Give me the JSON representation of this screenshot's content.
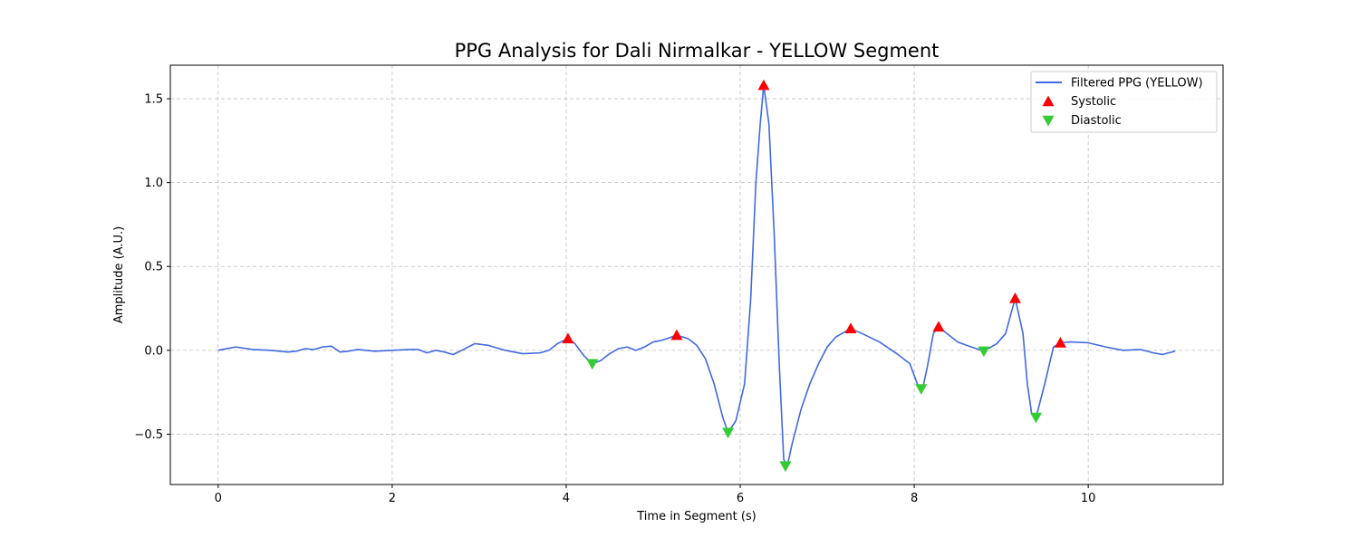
{
  "chart_data": {
    "type": "line",
    "title": "PPG Analysis for Dali Nirmalkar - YELLOW Segment",
    "xlabel": "Time in Segment (s)",
    "ylabel": "Amplitude (A.U.)",
    "xlim": [
      -0.55,
      11.55
    ],
    "ylim": [
      -0.8,
      1.7
    ],
    "xticks": [
      0,
      2,
      4,
      6,
      8,
      10
    ],
    "xtick_labels": [
      "0",
      "2",
      "4",
      "6",
      "8",
      "10"
    ],
    "yticks": [
      -0.5,
      0.0,
      0.5,
      1.0,
      1.5
    ],
    "ytick_labels": [
      "−0.5",
      "0.0",
      "0.5",
      "1.0",
      "1.5"
    ],
    "grid": true,
    "legend_position": "top-right",
    "colors": {
      "line": "#4169e1",
      "systolic": "#ff0000",
      "diastolic": "#32cd32"
    },
    "series": [
      {
        "name": "Filtered PPG (YELLOW)",
        "kind": "line",
        "points": [
          [
            0.0,
            0.0
          ],
          [
            0.2,
            0.02
          ],
          [
            0.4,
            0.005
          ],
          [
            0.6,
            0.0
          ],
          [
            0.8,
            -0.01
          ],
          [
            0.9,
            -0.005
          ],
          [
            1.0,
            0.01
          ],
          [
            1.1,
            0.005
          ],
          [
            1.2,
            0.02
          ],
          [
            1.3,
            0.025
          ],
          [
            1.4,
            -0.01
          ],
          [
            1.5,
            -0.005
          ],
          [
            1.6,
            0.005
          ],
          [
            1.8,
            -0.005
          ],
          [
            2.0,
            0.0
          ],
          [
            2.2,
            0.005
          ],
          [
            2.3,
            0.005
          ],
          [
            2.4,
            -0.015
          ],
          [
            2.5,
            0.0
          ],
          [
            2.6,
            -0.01
          ],
          [
            2.7,
            -0.025
          ],
          [
            2.8,
            0.0
          ],
          [
            2.95,
            0.04
          ],
          [
            3.1,
            0.03
          ],
          [
            3.3,
            0.0
          ],
          [
            3.5,
            -0.02
          ],
          [
            3.7,
            -0.015
          ],
          [
            3.8,
            0.0
          ],
          [
            3.9,
            0.04
          ],
          [
            4.02,
            0.07
          ],
          [
            4.1,
            0.04
          ],
          [
            4.2,
            -0.03
          ],
          [
            4.3,
            -0.08
          ],
          [
            4.4,
            -0.06
          ],
          [
            4.5,
            -0.02
          ],
          [
            4.6,
            0.01
          ],
          [
            4.7,
            0.02
          ],
          [
            4.8,
            0.0
          ],
          [
            4.9,
            0.02
          ],
          [
            5.0,
            0.05
          ],
          [
            5.1,
            0.06
          ],
          [
            5.27,
            0.09
          ],
          [
            5.4,
            0.07
          ],
          [
            5.5,
            0.03
          ],
          [
            5.6,
            -0.05
          ],
          [
            5.7,
            -0.2
          ],
          [
            5.8,
            -0.4
          ],
          [
            5.86,
            -0.49
          ],
          [
            5.95,
            -0.42
          ],
          [
            6.05,
            -0.2
          ],
          [
            6.12,
            0.3
          ],
          [
            6.18,
            1.0
          ],
          [
            6.23,
            1.35
          ],
          [
            6.27,
            1.58
          ],
          [
            6.33,
            1.35
          ],
          [
            6.39,
            0.7
          ],
          [
            6.45,
            -0.1
          ],
          [
            6.5,
            -0.65
          ],
          [
            6.54,
            -0.69
          ],
          [
            6.6,
            -0.55
          ],
          [
            6.7,
            -0.35
          ],
          [
            6.8,
            -0.2
          ],
          [
            6.9,
            -0.08
          ],
          [
            7.0,
            0.02
          ],
          [
            7.1,
            0.08
          ],
          [
            7.27,
            0.13
          ],
          [
            7.4,
            0.1
          ],
          [
            7.6,
            0.05
          ],
          [
            7.8,
            -0.02
          ],
          [
            7.95,
            -0.08
          ],
          [
            8.05,
            -0.22
          ],
          [
            8.1,
            -0.22
          ],
          [
            8.15,
            -0.1
          ],
          [
            8.22,
            0.1
          ],
          [
            8.28,
            0.14
          ],
          [
            8.4,
            0.09
          ],
          [
            8.5,
            0.05
          ],
          [
            8.6,
            0.03
          ],
          [
            8.8,
            -0.005
          ],
          [
            8.95,
            0.04
          ],
          [
            9.05,
            0.1
          ],
          [
            9.16,
            0.31
          ],
          [
            9.25,
            0.1
          ],
          [
            9.3,
            -0.2
          ],
          [
            9.35,
            -0.38
          ],
          [
            9.4,
            -0.4
          ],
          [
            9.5,
            -0.2
          ],
          [
            9.6,
            0.02
          ],
          [
            9.68,
            0.045
          ],
          [
            9.8,
            0.05
          ],
          [
            10.0,
            0.045
          ],
          [
            10.2,
            0.02
          ],
          [
            10.4,
            0.0
          ],
          [
            10.6,
            0.005
          ],
          [
            10.75,
            -0.015
          ],
          [
            10.85,
            -0.025
          ],
          [
            11.0,
            -0.005
          ]
        ]
      },
      {
        "name": "Systolic",
        "kind": "marker-up",
        "points": [
          [
            4.02,
            0.07
          ],
          [
            5.27,
            0.09
          ],
          [
            6.27,
            1.58
          ],
          [
            7.27,
            0.13
          ],
          [
            8.28,
            0.14
          ],
          [
            9.16,
            0.31
          ],
          [
            9.68,
            0.045
          ]
        ]
      },
      {
        "name": "Diastolic",
        "kind": "marker-down",
        "points": [
          [
            4.3,
            -0.08
          ],
          [
            5.86,
            -0.49
          ],
          [
            6.52,
            -0.69
          ],
          [
            8.08,
            -0.23
          ],
          [
            8.8,
            -0.005
          ],
          [
            9.4,
            -0.4
          ]
        ]
      }
    ]
  }
}
